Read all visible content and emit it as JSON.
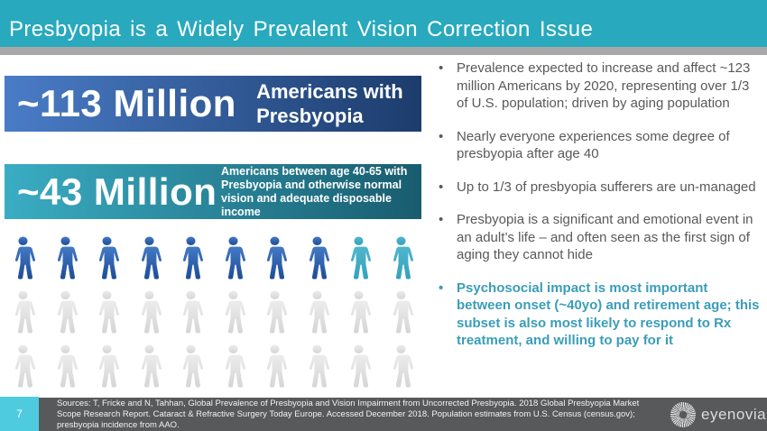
{
  "slide": {
    "title": "Presbyopia is a Widely Prevalent Vision Correction Issue",
    "page_number": "7"
  },
  "colors": {
    "header_teal": "#28A9BE",
    "divider_gray": "#A8A8A8",
    "banner1_left": "#4A7CC6",
    "banner1_right": "#1C3C6C",
    "banner2_left": "#3AADC3",
    "banner2_right": "#195C6F",
    "person_blue_top": "#4379C4",
    "person_blue_bottom": "#1E4D97",
    "person_teal_top": "#4FB6CC",
    "person_teal_bottom": "#35A2BC",
    "person_gray_top": "#ECECEC",
    "person_gray_bottom": "#D5D5D5",
    "bullet_text": "#595959",
    "bullet_highlight": "#3A9DB9",
    "footer_bar": "#58595B",
    "footer_page_box": "#4ECBDF"
  },
  "stats": [
    {
      "value": "~113 Million",
      "label": "Americans with Presbyopia"
    },
    {
      "value": "~43 Million",
      "label": "Americans between age 40-65 with Presbyopia and otherwise normal vision and adequate disposable income"
    }
  ],
  "pictogram": {
    "rows": [
      [
        "blue",
        "blue",
        "blue",
        "blue",
        "blue",
        "blue",
        "blue",
        "blue",
        "teal",
        "teal"
      ],
      [
        "gray",
        "gray",
        "gray",
        "gray",
        "gray",
        "gray",
        "gray",
        "gray",
        "gray",
        "gray"
      ],
      [
        "gray",
        "gray",
        "gray",
        "gray",
        "gray",
        "gray",
        "gray",
        "gray",
        "gray",
        "gray"
      ]
    ],
    "marker": "person-icon"
  },
  "bullets": [
    {
      "text": "Prevalence expected to increase and affect ~123 million Americans by 2020, representing over 1/3 of U.S. population; driven by aging population",
      "highlight": false
    },
    {
      "text": "Nearly everyone experiences some degree of presbyopia after age 40",
      "highlight": false
    },
    {
      "text": "Up to 1/3 of presbyopia sufferers are un-managed",
      "highlight": false
    },
    {
      "text": "Presbyopia is a significant and emotional event in an adult’s life – and often seen as the first sign of aging they cannot hide",
      "highlight": false
    },
    {
      "text": "Psychosocial impact is most important between onset (~40yo) and retirement age; this subset is also most likely to respond to Rx treatment, and willing to pay for it",
      "highlight": true
    }
  ],
  "footer": {
    "sources": "Sources: T, Fricke and N, Tahhan, Global Prevalence of Presbyopia and Vision Impairment from Uncorrected Presbyopia. 2018 Global Presbyopia Market Scope Research Report. Cataract & Refractive Surgery Today Europe. Accessed December 2018.  Population estimates from U.S. Census (census.gov); presbyopia incidence from AAO.",
    "logo_text": "eyenovia"
  }
}
